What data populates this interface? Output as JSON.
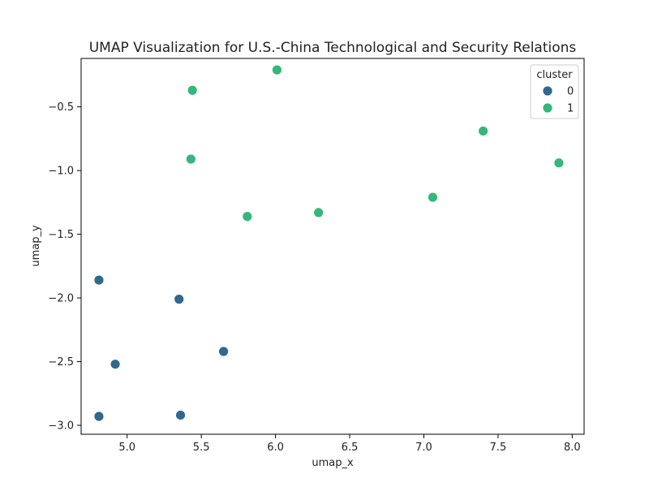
{
  "chart_data": {
    "type": "scatter",
    "title": "UMAP Visualization for U.S.-China Technological and Security Relations",
    "xlabel": "umap_x",
    "ylabel": "umap_y",
    "xlim": [
      4.69,
      8.08
    ],
    "ylim": [
      -3.07,
      -0.12
    ],
    "x_ticks": [
      5.0,
      5.5,
      6.0,
      6.5,
      7.0,
      7.5,
      8.0
    ],
    "x_tick_labels": [
      "5.0",
      "5.5",
      "6.0",
      "6.5",
      "7.0",
      "7.5",
      "8.0"
    ],
    "y_ticks": [
      -3.0,
      -2.5,
      -2.0,
      -1.5,
      -1.0,
      -0.5
    ],
    "y_tick_labels": [
      "−3.0",
      "−2.5",
      "−2.0",
      "−1.5",
      "−1.0",
      "−0.5"
    ],
    "grid": false,
    "legend": {
      "title": "cluster",
      "placement": "top-right",
      "entries": [
        {
          "label": "0",
          "color": "#31688e"
        },
        {
          "label": "1",
          "color": "#35b779"
        }
      ]
    },
    "series": [
      {
        "name": "0",
        "color": "#31688e",
        "points": [
          {
            "x": 4.81,
            "y": -1.86
          },
          {
            "x": 5.35,
            "y": -2.01
          },
          {
            "x": 4.92,
            "y": -2.52
          },
          {
            "x": 5.65,
            "y": -2.42
          },
          {
            "x": 4.81,
            "y": -2.93
          },
          {
            "x": 5.36,
            "y": -2.92
          }
        ]
      },
      {
        "name": "1",
        "color": "#35b779",
        "points": [
          {
            "x": 6.01,
            "y": -0.21
          },
          {
            "x": 5.44,
            "y": -0.37
          },
          {
            "x": 5.43,
            "y": -0.91
          },
          {
            "x": 5.81,
            "y": -1.36
          },
          {
            "x": 6.29,
            "y": -1.33
          },
          {
            "x": 7.06,
            "y": -1.21
          },
          {
            "x": 7.4,
            "y": -0.69
          },
          {
            "x": 7.91,
            "y": -0.94
          }
        ]
      }
    ]
  }
}
